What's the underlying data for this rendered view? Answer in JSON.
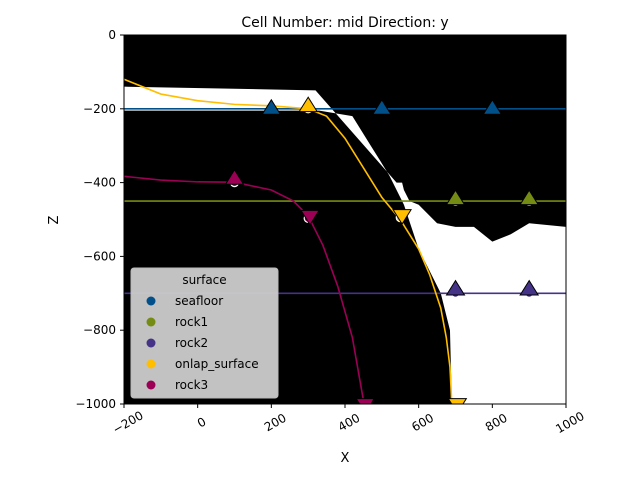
{
  "chart_data": {
    "type": "line",
    "title": "Cell Number: mid Direction: y",
    "xlabel": "X",
    "ylabel": "Z",
    "xlim": [
      -200,
      1000
    ],
    "ylim": [
      -1000,
      0
    ],
    "xticks": [
      "−200",
      "0",
      "200",
      "400",
      "600",
      "800",
      "1000"
    ],
    "xtick_values": [
      -200,
      0,
      200,
      400,
      600,
      800,
      1000
    ],
    "yticks": [
      "0",
      "−200",
      "−400",
      "−600",
      "−800",
      "−1000"
    ],
    "ytick_values": [
      0,
      -200,
      -400,
      -600,
      -800,
      -1000
    ],
    "background": "#000000",
    "white_region": [
      [
        -200,
        -140
      ],
      [
        320,
        -150
      ],
      [
        540,
        -400
      ],
      [
        555,
        -400
      ],
      [
        560,
        -420
      ],
      [
        575,
        -450
      ],
      [
        600,
        -460
      ],
      [
        650,
        -510
      ],
      [
        700,
        -520
      ],
      [
        750,
        -520
      ],
      [
        800,
        -560
      ],
      [
        850,
        -540
      ],
      [
        900,
        -510
      ],
      [
        1000,
        -520
      ],
      [
        1000,
        -1000
      ],
      [
        690,
        -1000
      ],
      [
        685,
        -800
      ],
      [
        660,
        -700
      ],
      [
        630,
        -640
      ],
      [
        600,
        -580
      ],
      [
        560,
        -460
      ],
      [
        520,
        -380
      ],
      [
        470,
        -300
      ],
      [
        420,
        -220
      ],
      [
        330,
        -205
      ],
      [
        -200,
        -205
      ]
    ],
    "series": [
      {
        "name": "seafloor",
        "color": "#02508a",
        "line": [
          [
            -200,
            -200
          ],
          [
            1000,
            -200
          ]
        ],
        "points": [
          [
            200,
            -200
          ],
          [
            500,
            -200
          ],
          [
            800,
            -200
          ]
        ],
        "orientations": [
          [
            200,
            -200,
            "up"
          ],
          [
            500,
            -200,
            "up"
          ],
          [
            800,
            -200,
            "up"
          ]
        ]
      },
      {
        "name": "rock1",
        "color": "#748b14",
        "line": [
          [
            -200,
            -450
          ],
          [
            1000,
            -450
          ]
        ],
        "points": [
          [
            700,
            -450
          ],
          [
            900,
            -450
          ]
        ],
        "orientations": [
          [
            700,
            -445,
            "up"
          ],
          [
            900,
            -445,
            "up"
          ]
        ]
      },
      {
        "name": "rock2",
        "color": "#453387",
        "line": [
          [
            -200,
            -700
          ],
          [
            1000,
            -700
          ]
        ],
        "points": [
          [
            700,
            -700
          ],
          [
            900,
            -700
          ]
        ],
        "orientations": [
          [
            700,
            -690,
            "up"
          ],
          [
            900,
            -690,
            "up"
          ]
        ]
      },
      {
        "name": "onlap_surface",
        "color": "#ffbe00",
        "line": [
          [
            -200,
            -120
          ],
          [
            -100,
            -160
          ],
          [
            0,
            -178
          ],
          [
            100,
            -188
          ],
          [
            200,
            -192
          ],
          [
            300,
            -200
          ],
          [
            350,
            -220
          ],
          [
            400,
            -280
          ],
          [
            450,
            -360
          ],
          [
            500,
            -440
          ],
          [
            550,
            -500
          ],
          [
            600,
            -580
          ],
          [
            630,
            -650
          ],
          [
            660,
            -740
          ],
          [
            675,
            -820
          ],
          [
            685,
            -900
          ],
          [
            690,
            -1000
          ]
        ],
        "points": [
          [
            300,
            -200
          ],
          [
            550,
            -495
          ]
        ],
        "orientations": [
          [
            300,
            -193,
            "up"
          ],
          [
            555,
            -488,
            "down"
          ],
          [
            705,
            -1000,
            "down"
          ]
        ]
      },
      {
        "name": "rock3",
        "color": "#9b0055",
        "line": [
          [
            -200,
            -383
          ],
          [
            -100,
            -393
          ],
          [
            0,
            -398
          ],
          [
            100,
            -399
          ],
          [
            200,
            -420
          ],
          [
            260,
            -450
          ],
          [
            300,
            -490
          ],
          [
            340,
            -570
          ],
          [
            380,
            -680
          ],
          [
            420,
            -820
          ],
          [
            450,
            -990
          ]
        ],
        "points": [
          [
            100,
            -400
          ],
          [
            300,
            -497
          ],
          [
            450,
            -1000
          ]
        ],
        "orientations": [
          [
            100,
            -390,
            "up"
          ],
          [
            305,
            -490,
            "down"
          ],
          [
            455,
            -1000,
            "down"
          ]
        ]
      }
    ],
    "legend": {
      "title": "surface",
      "position": "lower-left",
      "entries": [
        "seafloor",
        "rock1",
        "rock2",
        "onlap_surface",
        "rock3"
      ]
    }
  }
}
